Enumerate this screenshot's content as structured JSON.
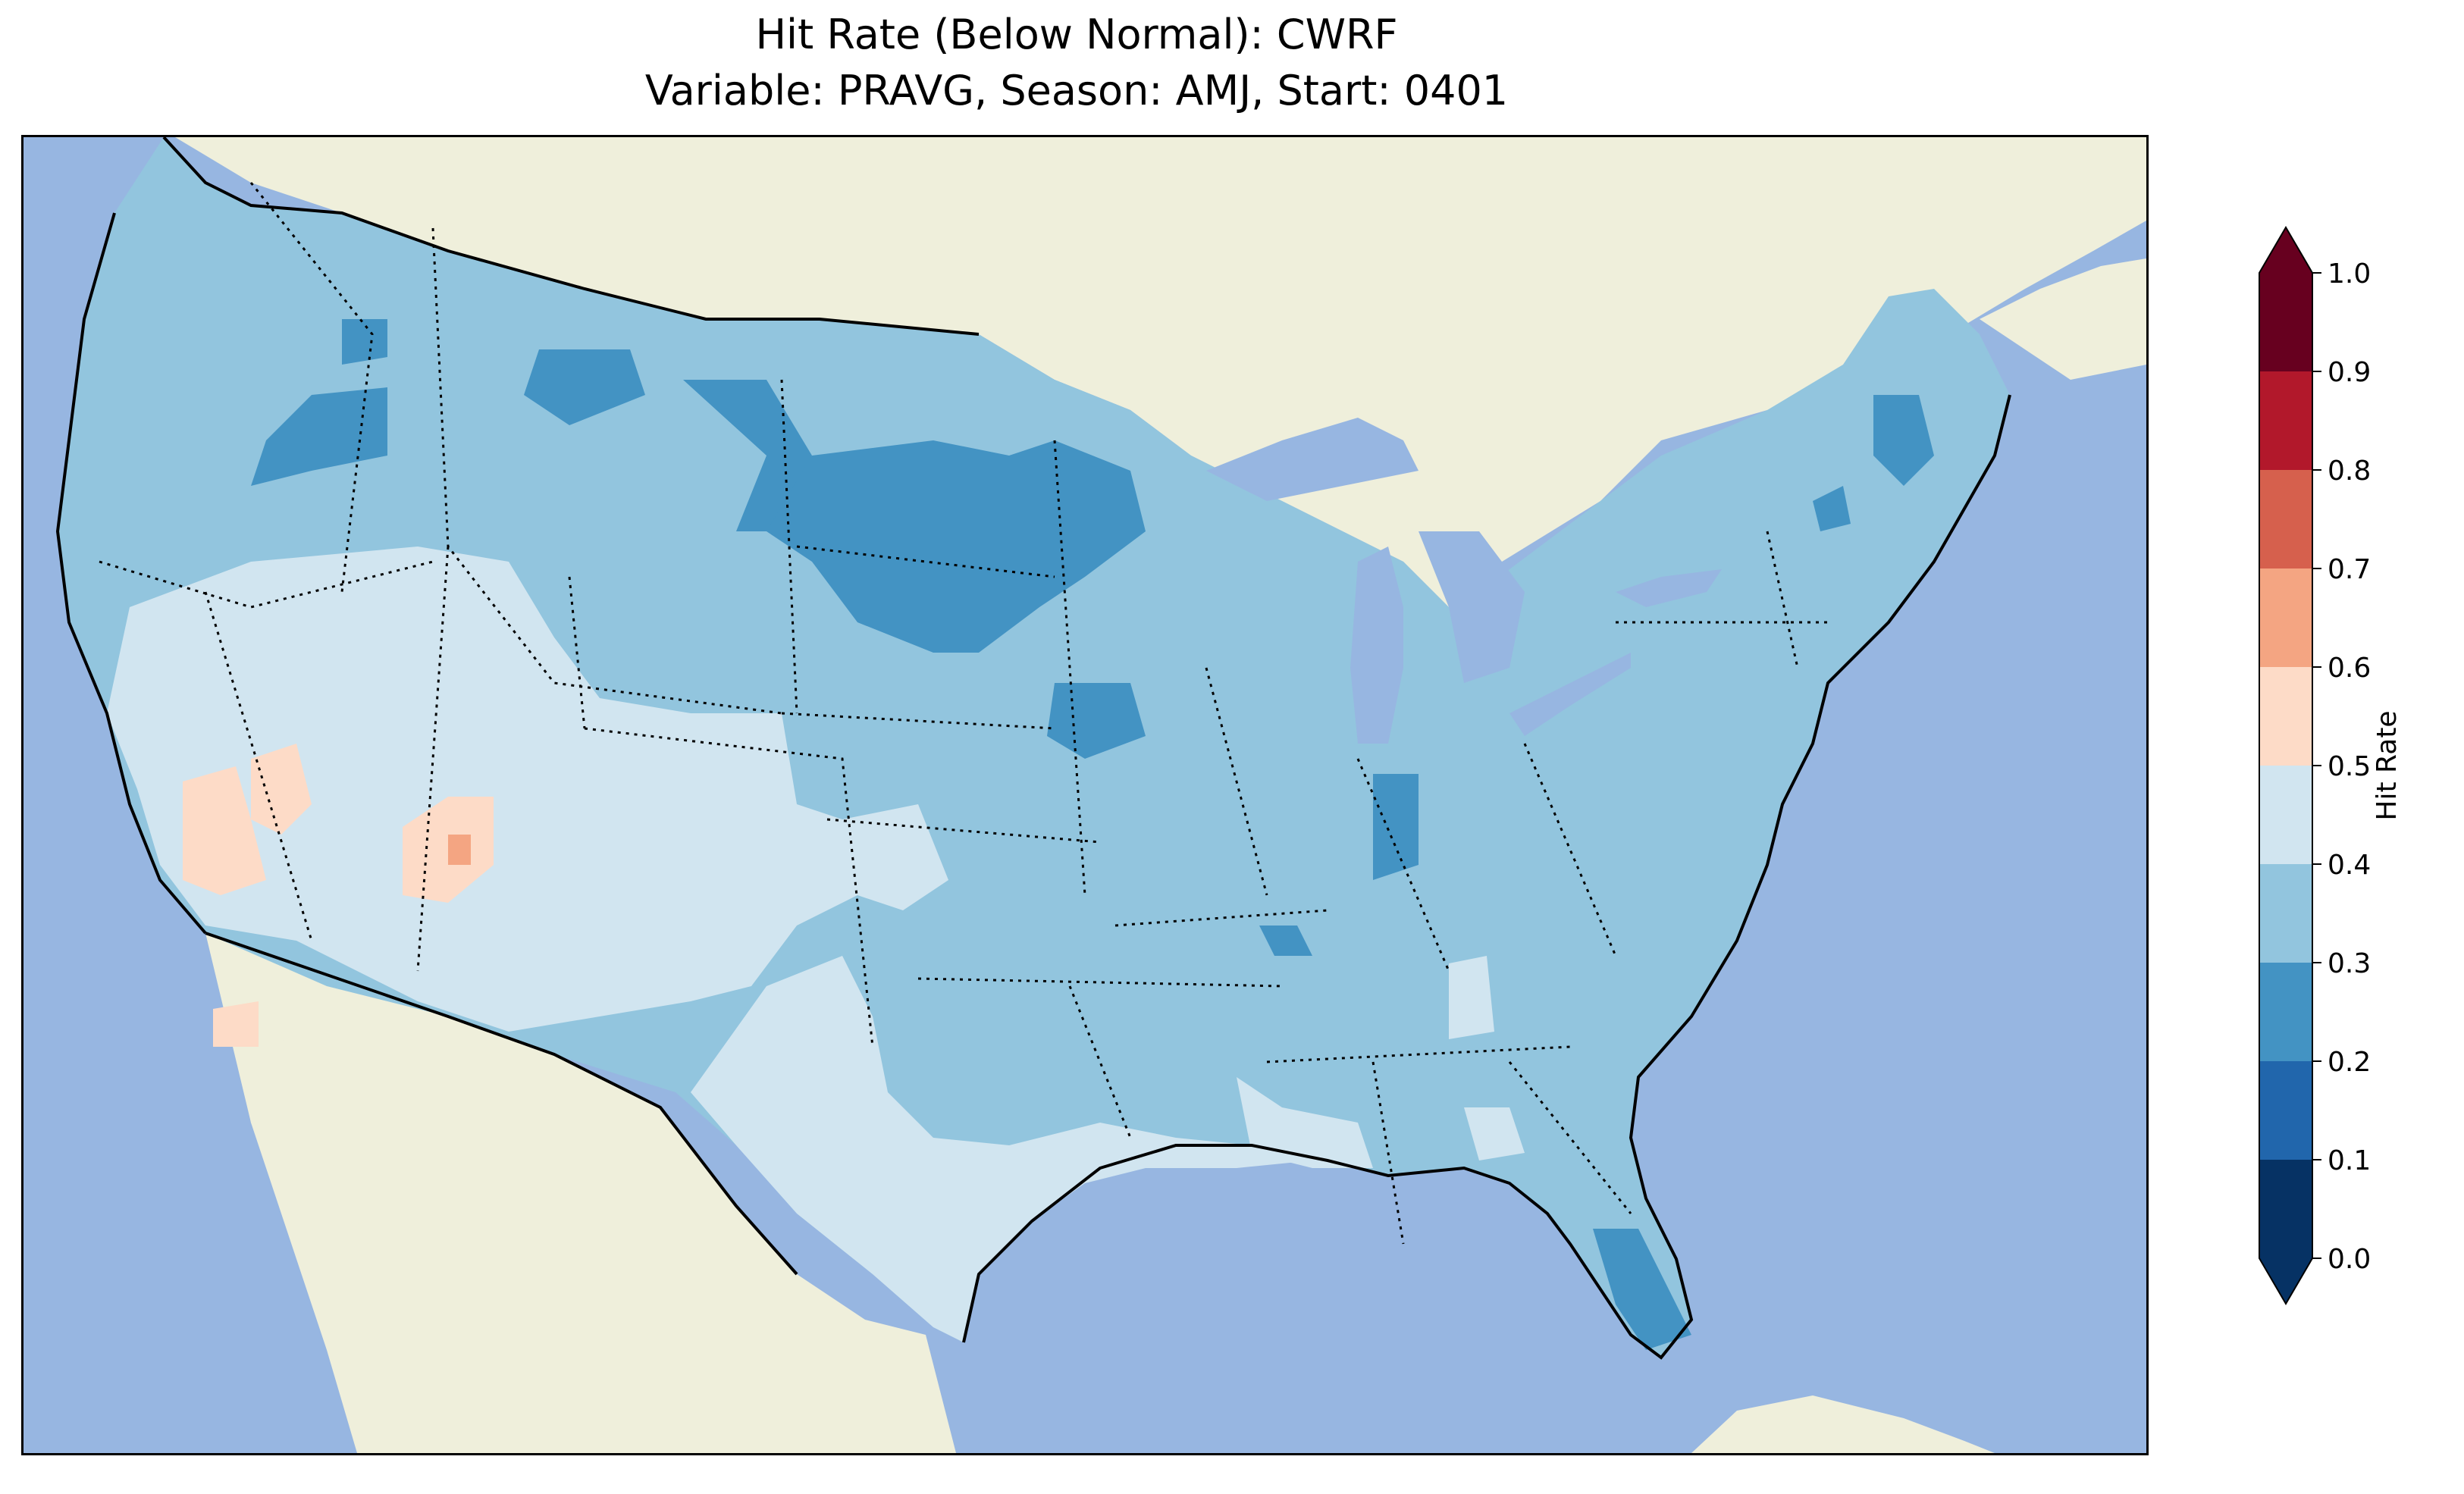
{
  "figure": {
    "title_line_1": "Hit Rate (Below Normal): CWRF",
    "title_line_2": "Variable: PRAVG, Season: AMJ, Start: 0401"
  },
  "map": {
    "projection": "contiguous-united-states",
    "ocean_color": "#97b6e1",
    "land_color": "#efefdb",
    "border_style": "dotted-state-lines"
  },
  "colorbar": {
    "label": "Hit Rate",
    "ticks": [
      "0.0",
      "0.1",
      "0.2",
      "0.3",
      "0.4",
      "0.5",
      "0.6",
      "0.7",
      "0.8",
      "0.9",
      "1.0"
    ],
    "colors": [
      "#063264",
      "#2166ac",
      "#4393c3",
      "#92c5de",
      "#d1e5f0",
      "#fddbc7",
      "#f4a582",
      "#d6604d",
      "#b2182b",
      "#67001f"
    ],
    "extend": "both",
    "under_color": "#063264",
    "over_color": "#67001f"
  },
  "chart_data": {
    "type": "heatmap",
    "title": "Hit Rate (Below Normal): CWRF / Variable: PRAVG, Season: AMJ, Start: 0401",
    "value_range": [
      0.0,
      1.0
    ],
    "bins": [
      0.0,
      0.1,
      0.2,
      0.3,
      0.4,
      0.5,
      0.6,
      0.7,
      0.8,
      0.9,
      1.0
    ],
    "regions": [
      {
        "region": "Pacific Northwest",
        "hit_rate_bin": [
          0.3,
          0.4
        ]
      },
      {
        "region": "Northern Plains (Dakotas/Montana)",
        "hit_rate_bin": [
          0.2,
          0.3
        ]
      },
      {
        "region": "Great Basin / Nevada-Utah",
        "hit_rate_bin": [
          0.4,
          0.5
        ]
      },
      {
        "region": "Central Nevada / Utah pockets",
        "hit_rate_bin": [
          0.5,
          0.6
        ]
      },
      {
        "region": "Central Plains / Midwest",
        "hit_rate_bin": [
          0.3,
          0.4
        ]
      },
      {
        "region": "Iowa / Indiana spots",
        "hit_rate_bin": [
          0.2,
          0.3
        ]
      },
      {
        "region": "Texas / Southern Plains",
        "hit_rate_bin": [
          0.4,
          0.5
        ]
      },
      {
        "region": "Southeast / East Coast",
        "hit_rate_bin": [
          0.3,
          0.4
        ]
      },
      {
        "region": "Florida Peninsula (north)",
        "hit_rate_bin": [
          0.2,
          0.3
        ]
      },
      {
        "region": "Maine",
        "hit_rate_bin": [
          0.2,
          0.3
        ]
      }
    ]
  }
}
